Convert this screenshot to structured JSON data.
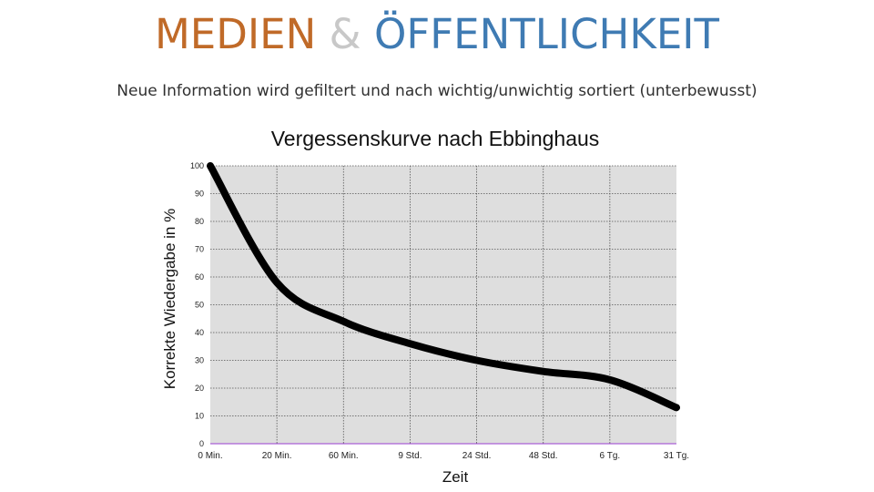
{
  "slide": {
    "title_part1": "MEDIEN",
    "title_amp": "&",
    "title_part2": "ÖFFENTLICHKEIT",
    "subtitle": "Neue Information wird gefiltert und nach wichtig/unwichtig sortiert (unterbewusst)"
  },
  "colors": {
    "title_part1": "#c06a28",
    "title_amp": "#c8c8c8",
    "title_part2": "#3f7bb3",
    "plot_background": "#dedede",
    "curve": "#000000",
    "baseline": "#9a3fd0"
  },
  "chart_data": {
    "type": "line",
    "title": "Vergessenskurve nach Ebbinghaus",
    "xlabel": "Zeit",
    "ylabel": "Korrekte Wiedergabe in %",
    "ylim": [
      0,
      100
    ],
    "yticks": [
      0,
      10,
      20,
      30,
      40,
      50,
      60,
      70,
      80,
      90,
      100
    ],
    "categories": [
      "0 Min.",
      "20 Min.",
      "60 Min.",
      "9 Std.",
      "24 Std.",
      "48 Std.",
      "6 Tg.",
      "31 Tg."
    ],
    "grid": true,
    "series": [
      {
        "values": [
          100,
          58,
          44,
          36,
          30,
          26,
          23,
          13
        ]
      }
    ]
  }
}
